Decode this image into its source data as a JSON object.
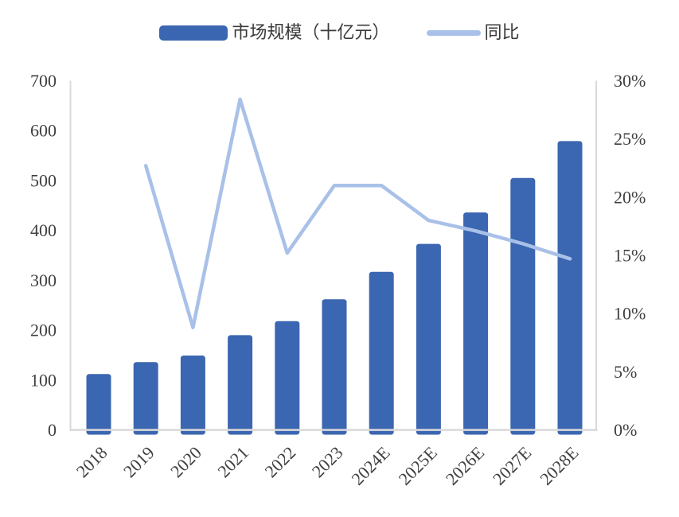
{
  "legend": {
    "items": [
      {
        "label": "市场规模（十亿元）",
        "marker": "bar-swatch"
      },
      {
        "label": "同比",
        "marker": "line-swatch"
      }
    ]
  },
  "colors": {
    "bar": "#3b66b1",
    "line": "#a9c1e8",
    "axis_line": "#d9d9d9",
    "tick_text": "#404040",
    "legend_text": "#3a3a3a"
  },
  "chart_data": {
    "type": "combo_bar_line",
    "categories": [
      "2018",
      "2019",
      "2020",
      "2021",
      "2022",
      "2023",
      "2024E",
      "2025E",
      "2026E",
      "2027E",
      "2028E"
    ],
    "series": [
      {
        "name": "市场规模（十亿元）",
        "type": "bar",
        "y_axis": "left",
        "values": [
          112,
          136,
          149,
          190,
          218,
          262,
          317,
          373,
          436,
          505,
          579
        ]
      },
      {
        "name": "同比",
        "type": "line",
        "y_axis": "right",
        "values": [
          null,
          22.7,
          8.8,
          28.4,
          15.2,
          21.0,
          21.0,
          18.0,
          17.1,
          16.0,
          14.7
        ]
      }
    ],
    "left_axis": {
      "min": 0,
      "max": 700,
      "step": 100,
      "tick_labels": [
        "0",
        "100",
        "200",
        "300",
        "400",
        "500",
        "600",
        "700"
      ]
    },
    "right_axis": {
      "min": 0,
      "max": 30,
      "step": 5,
      "unit": "%",
      "tick_labels": [
        "0%",
        "5%",
        "10%",
        "15%",
        "20%",
        "25%",
        "30%"
      ]
    },
    "grid": false,
    "legend_position": "top"
  }
}
